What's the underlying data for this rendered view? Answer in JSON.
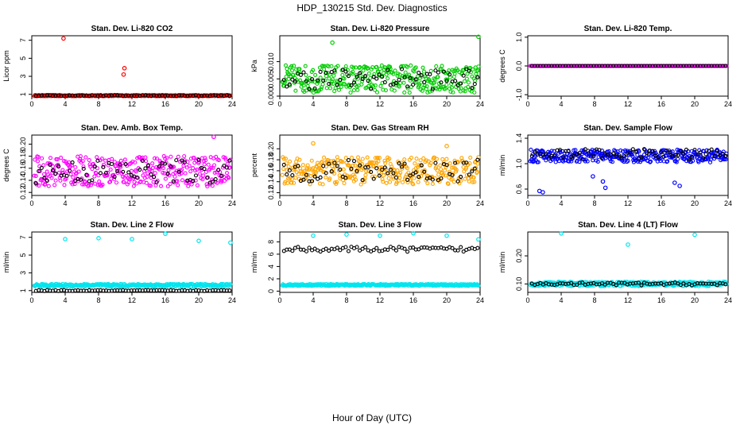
{
  "page_title": "HDP_130215  Std. Dev. Diagnostics",
  "x_axis_label": "Hour of Day (UTC)",
  "chart_data": [
    {
      "type": "scatter",
      "title": "Stan. Dev. Li-820 CO2",
      "ylabel": "Licor ppm",
      "xlim": [
        0,
        24
      ],
      "ylim": [
        0.8,
        7.5
      ],
      "xticks": [
        0,
        4,
        8,
        12,
        16,
        20,
        24
      ],
      "yticks": [
        1,
        3,
        5,
        7
      ],
      "yticklabels": [
        "1",
        "3",
        "5",
        "7"
      ],
      "color": "#ff0000",
      "baseline": 0.85,
      "spread": 0.08,
      "outliers": [
        [
          3.8,
          7.2
        ],
        [
          11.1,
          3.9
        ],
        [
          11.0,
          3.2
        ]
      ],
      "black_level": 0.86,
      "black_spread": 0.05
    },
    {
      "type": "scatter",
      "title": "Stan. Dev. Li-820 Pressure",
      "ylabel": "kPa",
      "xlim": [
        0,
        24
      ],
      "ylim": [
        0,
        0.0175
      ],
      "xticks": [
        0,
        4,
        8,
        12,
        16,
        20,
        24
      ],
      "yticks": [
        0,
        0.005,
        0.01
      ],
      "yticklabels": [
        "0.000",
        "0.005",
        "0.010"
      ],
      "color": "#00cc00",
      "baseline": 0.005,
      "spread": 0.004,
      "outliers": [
        [
          23.8,
          0.0172
        ],
        [
          6.3,
          0.0155
        ]
      ],
      "black_level": 0.005,
      "black_spread": 0.003
    },
    {
      "type": "scatter",
      "title": "Stan. Dev. Li-820 Temp.",
      "ylabel": "degrees C",
      "xlim": [
        0,
        24
      ],
      "ylim": [
        -1.05,
        1.05
      ],
      "xticks": [
        0,
        4,
        8,
        12,
        16,
        20,
        24
      ],
      "yticks": [
        -1,
        0,
        1
      ],
      "yticklabels": [
        "-1.0",
        "0.0",
        "1.0"
      ],
      "color": "#ff00ff",
      "baseline": 0,
      "spread": 0,
      "outliers": [],
      "black_level": 0,
      "black_spread": 0
    },
    {
      "type": "scatter",
      "title": "Stan. Dev. Amb. Box Temp.",
      "ylabel": "degrees C",
      "xlim": [
        0,
        24
      ],
      "ylim": [
        0.115,
        0.215
      ],
      "xticks": [
        0,
        4,
        8,
        12,
        16,
        20,
        24
      ],
      "yticks": [
        0.12,
        0.14,
        0.16,
        0.18,
        0.2
      ],
      "yticklabels": [
        "0.12",
        "0.14",
        "0.16",
        "0.18",
        "0.20"
      ],
      "color": "#ff00ff",
      "baseline": 0.155,
      "spread": 0.025,
      "outliers": [
        [
          21.8,
          0.212
        ]
      ],
      "black_level": 0.155,
      "black_spread": 0.02
    },
    {
      "type": "scatter",
      "title": "Stan. Dev. Gas Stream RH",
      "ylabel": "percent",
      "xlim": [
        0,
        24
      ],
      "ylim": [
        0.115,
        0.225
      ],
      "xticks": [
        0,
        4,
        8,
        12,
        16,
        20,
        24
      ],
      "yticks": [
        0.12,
        0.14,
        0.16,
        0.18,
        0.2
      ],
      "yticklabels": [
        "0.12",
        "0.14",
        "0.16",
        "0.18",
        "0.20"
      ],
      "color": "#ffa500",
      "baseline": 0.16,
      "spread": 0.025,
      "outliers": [
        [
          4.0,
          0.21
        ],
        [
          20.0,
          0.205
        ]
      ],
      "black_level": 0.16,
      "black_spread": 0.02
    },
    {
      "type": "scatter",
      "title": "Stan. Dev. Sample Flow",
      "ylabel": "ml/min",
      "xlim": [
        0,
        24
      ],
      "ylim": [
        0.5,
        1.45
      ],
      "xticks": [
        0,
        4,
        8,
        12,
        16,
        20,
        24
      ],
      "yticks": [
        0.6,
        1.0,
        1.4
      ],
      "yticklabels": [
        "0.6",
        "1.0",
        "1.4"
      ],
      "color": "#0000ff",
      "baseline": 1.12,
      "spread": 0.1,
      "outliers": [
        [
          1.4,
          0.57
        ],
        [
          1.8,
          0.55
        ],
        [
          9.3,
          0.62
        ],
        [
          9.0,
          0.72
        ],
        [
          17.6,
          0.7
        ],
        [
          18.2,
          0.65
        ],
        [
          7.8,
          0.8
        ]
      ],
      "black_level": 1.15,
      "black_spread": 0.08
    },
    {
      "type": "scatter",
      "title": "Stan. Dev. Line 2 Flow",
      "ylabel": "ml/min",
      "xlim": [
        0,
        24
      ],
      "ylim": [
        0.8,
        7.6
      ],
      "xticks": [
        0,
        4,
        8,
        12,
        16,
        20,
        24
      ],
      "yticks": [
        1,
        3,
        5,
        7
      ],
      "yticklabels": [
        "1",
        "3",
        "5",
        "7"
      ],
      "color": "#00e5ee",
      "baseline": 1.6,
      "spread": 0.15,
      "outliers": [
        [
          4.0,
          6.8
        ],
        [
          8.0,
          6.9
        ],
        [
          12.0,
          6.8
        ],
        [
          16.0,
          7.4
        ],
        [
          20.0,
          6.6
        ],
        [
          23.8,
          6.4
        ]
      ],
      "black_level": 1.0,
      "black_spread": 0.05
    },
    {
      "type": "scatter",
      "title": "Stan. Dev. Line 3 Flow",
      "ylabel": "ml/min",
      "xlim": [
        0,
        24
      ],
      "ylim": [
        -0.2,
        9.6
      ],
      "xticks": [
        0,
        4,
        8,
        12,
        16,
        20,
        24
      ],
      "yticks": [
        0,
        2,
        4,
        6,
        8
      ],
      "yticklabels": [
        "0",
        "2",
        "4",
        "6",
        "8"
      ],
      "color": "#00e5ee",
      "baseline": 1.0,
      "spread": 0.15,
      "outliers": [
        [
          4.0,
          9.0
        ],
        [
          8.0,
          9.2
        ],
        [
          12.0,
          9.0
        ],
        [
          16.0,
          9.4
        ],
        [
          20.0,
          9.0
        ],
        [
          23.8,
          8.4
        ]
      ],
      "black_level": 6.8,
      "black_spread": 0.4
    },
    {
      "type": "scatter",
      "title": "Stan. Dev. Line 4 (LT) Flow",
      "ylabel": "ml/min",
      "xlim": [
        0,
        24
      ],
      "ylim": [
        0.07,
        0.285
      ],
      "xticks": [
        0,
        4,
        8,
        12,
        16,
        20,
        24
      ],
      "yticks": [
        0.1,
        0.2
      ],
      "yticklabels": [
        "0.10",
        "0.20"
      ],
      "color": "#00e5ee",
      "baseline": 0.1,
      "spread": 0.008,
      "outliers": [
        [
          4.0,
          0.28
        ],
        [
          12.0,
          0.24
        ],
        [
          20.0,
          0.275
        ]
      ],
      "black_level": 0.1,
      "black_spread": 0.005
    }
  ]
}
